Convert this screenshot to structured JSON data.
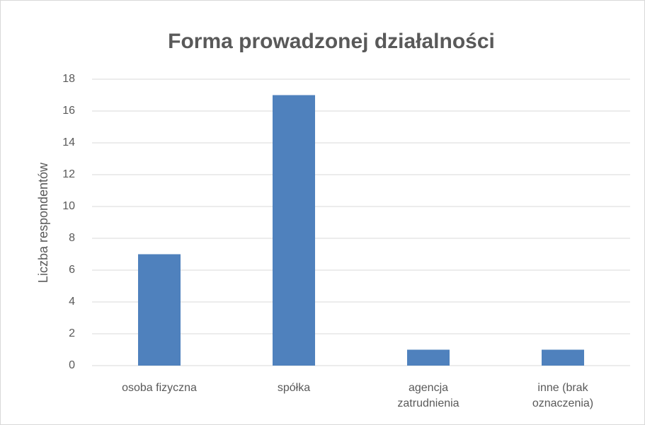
{
  "chart_data": {
    "type": "bar",
    "title": "Forma prowadzonej działalności",
    "y_label": "Liczba respondentów",
    "categories": [
      "osoba fizyczna",
      "spółka",
      "agencja zatrudnienia",
      "inne (brak oznaczenia)"
    ],
    "values": [
      7,
      17,
      1,
      1
    ],
    "color": "#4f81bd",
    "ylim": [
      0,
      18
    ],
    "yticks": [
      0,
      2,
      4,
      6,
      8,
      10,
      12,
      14,
      16,
      18
    ],
    "grid": true
  }
}
